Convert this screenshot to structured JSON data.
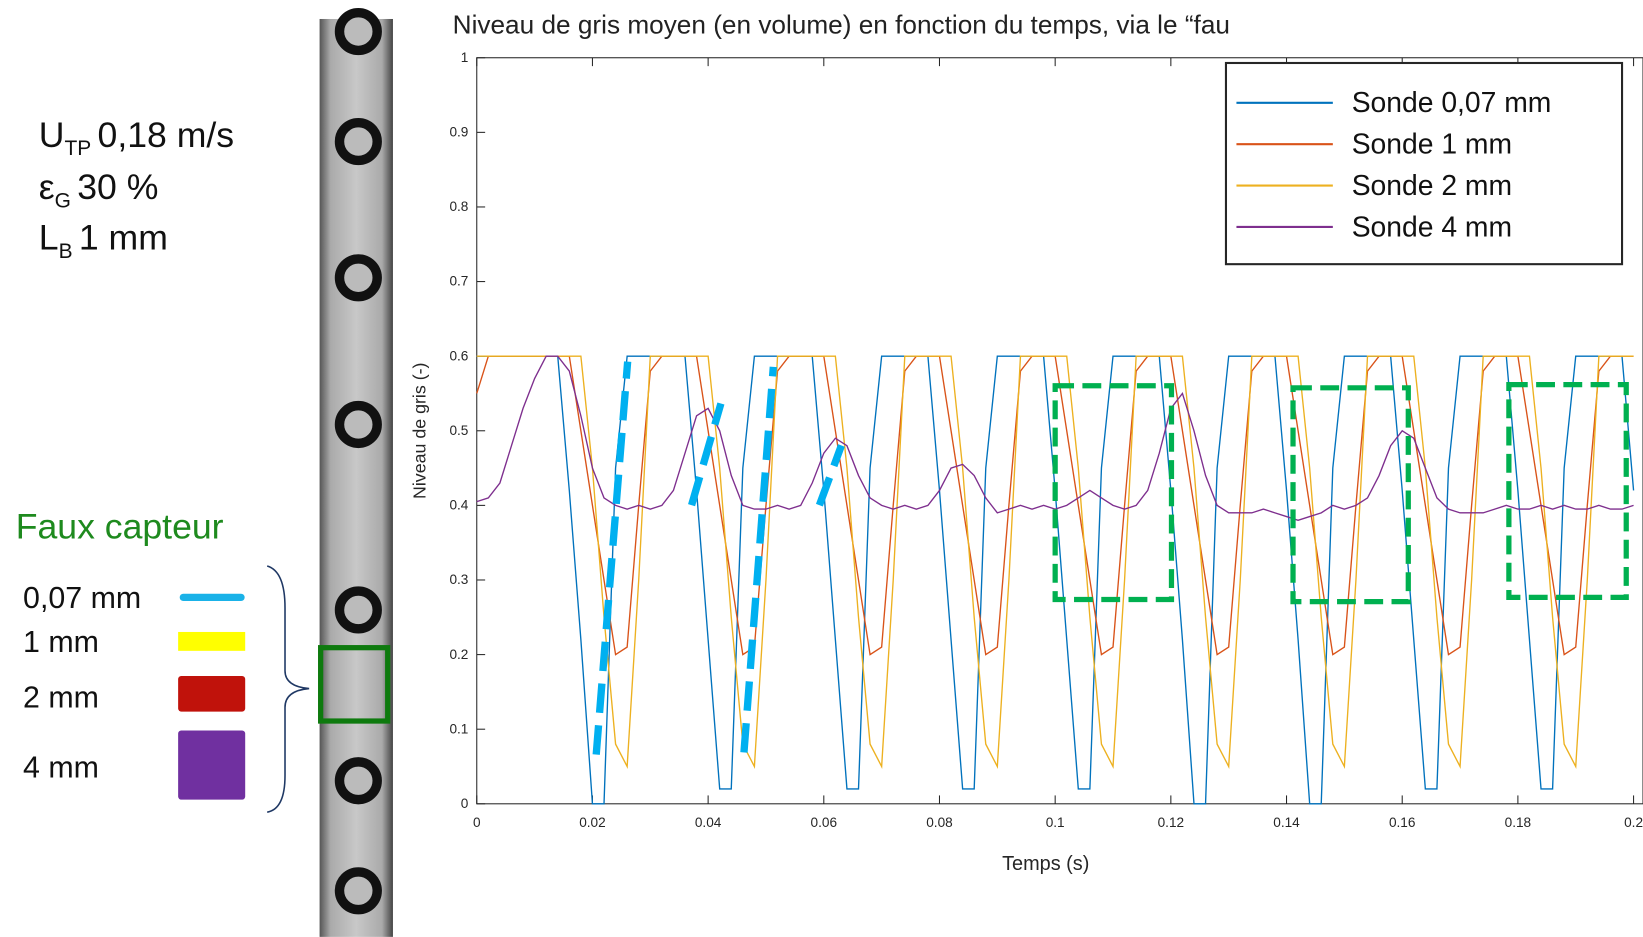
{
  "chart_data": {
    "type": "line",
    "title": "Niveau de gris moyen (en volume) en fonction du temps, via le “fau",
    "xlabel": "Temps (s)",
    "ylabel": "Niveau de gris (-)",
    "x": [
      0,
      0.002,
      0.004,
      0.006,
      0.008,
      0.01,
      0.012,
      0.014,
      0.016,
      0.018,
      0.02,
      0.022,
      0.024,
      0.026,
      0.028,
      0.03,
      0.032,
      0.034,
      0.036,
      0.038,
      0.04,
      0.042,
      0.044,
      0.046,
      0.048,
      0.05,
      0.052,
      0.054,
      0.056,
      0.058,
      0.06,
      0.062,
      0.064,
      0.066,
      0.068,
      0.07,
      0.072,
      0.074,
      0.076,
      0.078,
      0.08,
      0.082,
      0.084,
      0.086,
      0.088,
      0.09,
      0.092,
      0.094,
      0.096,
      0.098,
      0.1,
      0.102,
      0.104,
      0.106,
      0.108,
      0.11,
      0.112,
      0.114,
      0.116,
      0.118,
      0.12,
      0.122,
      0.124,
      0.126,
      0.128,
      0.13,
      0.132,
      0.134,
      0.136,
      0.138,
      0.14,
      0.142,
      0.144,
      0.146,
      0.148,
      0.15,
      0.152,
      0.154,
      0.156,
      0.158,
      0.16,
      0.162,
      0.164,
      0.166,
      0.168,
      0.17,
      0.172,
      0.174,
      0.176,
      0.178,
      0.18,
      0.182,
      0.184,
      0.186,
      0.188,
      0.19,
      0.192,
      0.194,
      0.196,
      0.198,
      0.2
    ],
    "series": [
      {
        "name": "Sonde 0,07 mm",
        "color": "#0072bd",
        "values": [
          0.6,
          0.6,
          0.6,
          0.6,
          0.6,
          0.6,
          0.6,
          0.6,
          0.42,
          0.22,
          0,
          0,
          0.45,
          0.6,
          0.6,
          0.6,
          0.6,
          0.6,
          0.6,
          0.42,
          0.22,
          0.02,
          0.02,
          0.45,
          0.6,
          0.6,
          0.6,
          0.6,
          0.6,
          0.6,
          0.42,
          0.22,
          0.02,
          0.02,
          0.45,
          0.6,
          0.6,
          0.6,
          0.6,
          0.6,
          0.42,
          0.22,
          0.02,
          0.02,
          0.45,
          0.6,
          0.6,
          0.6,
          0.6,
          0.6,
          0.42,
          0.22,
          0.02,
          0.02,
          0.45,
          0.6,
          0.6,
          0.6,
          0.6,
          0.6,
          0.42,
          0.22,
          0,
          0,
          0.45,
          0.6,
          0.6,
          0.6,
          0.6,
          0.6,
          0.42,
          0.22,
          0,
          0,
          0.45,
          0.6,
          0.6,
          0.6,
          0.6,
          0.6,
          0.42,
          0.22,
          0.02,
          0.02,
          0.45,
          0.6,
          0.6,
          0.6,
          0.6,
          0.6,
          0.42,
          0.22,
          0.02,
          0.02,
          0.45,
          0.6,
          0.6,
          0.6,
          0.6,
          0.6,
          0.42
        ]
      },
      {
        "name": "Sonde 1 mm",
        "color": "#d95319",
        "values": [
          0.55,
          0.6,
          0.6,
          0.6,
          0.6,
          0.6,
          0.6,
          0.6,
          0.6,
          0.5,
          0.4,
          0.3,
          0.2,
          0.21,
          0.4,
          0.58,
          0.6,
          0.6,
          0.6,
          0.6,
          0.5,
          0.4,
          0.3,
          0.2,
          0.21,
          0.4,
          0.58,
          0.6,
          0.6,
          0.6,
          0.6,
          0.5,
          0.4,
          0.3,
          0.2,
          0.21,
          0.4,
          0.58,
          0.6,
          0.6,
          0.6,
          0.5,
          0.4,
          0.3,
          0.2,
          0.21,
          0.4,
          0.58,
          0.6,
          0.6,
          0.6,
          0.5,
          0.4,
          0.3,
          0.2,
          0.21,
          0.4,
          0.58,
          0.6,
          0.6,
          0.6,
          0.5,
          0.4,
          0.3,
          0.2,
          0.21,
          0.4,
          0.58,
          0.6,
          0.6,
          0.6,
          0.5,
          0.4,
          0.3,
          0.2,
          0.21,
          0.4,
          0.58,
          0.6,
          0.6,
          0.6,
          0.5,
          0.4,
          0.3,
          0.2,
          0.21,
          0.4,
          0.58,
          0.6,
          0.6,
          0.6,
          0.5,
          0.4,
          0.3,
          0.2,
          0.21,
          0.4,
          0.58,
          0.6,
          0.6,
          0.6
        ]
      },
      {
        "name": "Sonde 2 mm",
        "color": "#edb120",
        "values": [
          0.6,
          0.6,
          0.6,
          0.6,
          0.6,
          0.6,
          0.6,
          0.6,
          0.6,
          0.6,
          0.45,
          0.25,
          0.08,
          0.05,
          0.3,
          0.6,
          0.6,
          0.6,
          0.6,
          0.6,
          0.6,
          0.45,
          0.25,
          0.08,
          0.05,
          0.3,
          0.6,
          0.6,
          0.6,
          0.6,
          0.6,
          0.6,
          0.45,
          0.25,
          0.08,
          0.05,
          0.3,
          0.6,
          0.6,
          0.6,
          0.6,
          0.6,
          0.45,
          0.25,
          0.08,
          0.05,
          0.3,
          0.6,
          0.6,
          0.6,
          0.6,
          0.6,
          0.45,
          0.25,
          0.08,
          0.05,
          0.3,
          0.6,
          0.6,
          0.6,
          0.6,
          0.6,
          0.45,
          0.25,
          0.08,
          0.05,
          0.3,
          0.6,
          0.6,
          0.6,
          0.6,
          0.6,
          0.45,
          0.25,
          0.08,
          0.05,
          0.3,
          0.6,
          0.6,
          0.6,
          0.6,
          0.6,
          0.45,
          0.25,
          0.08,
          0.05,
          0.3,
          0.6,
          0.6,
          0.6,
          0.6,
          0.6,
          0.45,
          0.25,
          0.08,
          0.05,
          0.3,
          0.6,
          0.6,
          0.6,
          0.6
        ]
      },
      {
        "name": "Sonde 4 mm",
        "color": "#7e2f8e",
        "values": [
          0.405,
          0.41,
          0.43,
          0.48,
          0.53,
          0.57,
          0.6,
          0.6,
          0.58,
          0.52,
          0.45,
          0.41,
          0.4,
          0.395,
          0.4,
          0.395,
          0.4,
          0.42,
          0.47,
          0.52,
          0.53,
          0.5,
          0.44,
          0.4,
          0.395,
          0.395,
          0.4,
          0.395,
          0.4,
          0.43,
          0.47,
          0.49,
          0.48,
          0.44,
          0.41,
          0.4,
          0.395,
          0.4,
          0.395,
          0.4,
          0.42,
          0.45,
          0.455,
          0.44,
          0.41,
          0.39,
          0.395,
          0.4,
          0.395,
          0.4,
          0.395,
          0.4,
          0.41,
          0.42,
          0.41,
          0.4,
          0.395,
          0.4,
          0.42,
          0.47,
          0.53,
          0.55,
          0.5,
          0.44,
          0.4,
          0.39,
          0.39,
          0.39,
          0.395,
          0.39,
          0.385,
          0.38,
          0.385,
          0.39,
          0.4,
          0.395,
          0.4,
          0.41,
          0.44,
          0.48,
          0.5,
          0.49,
          0.45,
          0.41,
          0.395,
          0.39,
          0.39,
          0.39,
          0.395,
          0.4,
          0.395,
          0.395,
          0.4,
          0.395,
          0.4,
          0.395,
          0.395,
          0.4,
          0.395,
          0.395,
          0.4
        ]
      }
    ],
    "xlim": [
      0,
      0.2
    ],
    "ylim": [
      0,
      1
    ],
    "xticks": [
      0,
      0.02,
      0.04,
      0.06,
      0.08,
      0.1,
      0.12,
      0.14,
      0.16,
      0.18,
      0.2
    ],
    "yticks": [
      0,
      0.1,
      0.2,
      0.3,
      0.4,
      0.5,
      0.6,
      0.7,
      0.8,
      0.9,
      1
    ],
    "legend": "upper right"
  },
  "parameters": [
    {
      "symbol": "U",
      "subscript": "TP",
      "value": "0,18 m/s"
    },
    {
      "symbol": "ε",
      "subscript": "G",
      "value": "30 %"
    },
    {
      "symbol": "L",
      "subscript": "B",
      "value": "1 mm"
    }
  ],
  "sensor_legend": {
    "title": "Faux capteur",
    "items": [
      "0,07 mm",
      "1 mm",
      "2 mm",
      "4 mm"
    ]
  }
}
